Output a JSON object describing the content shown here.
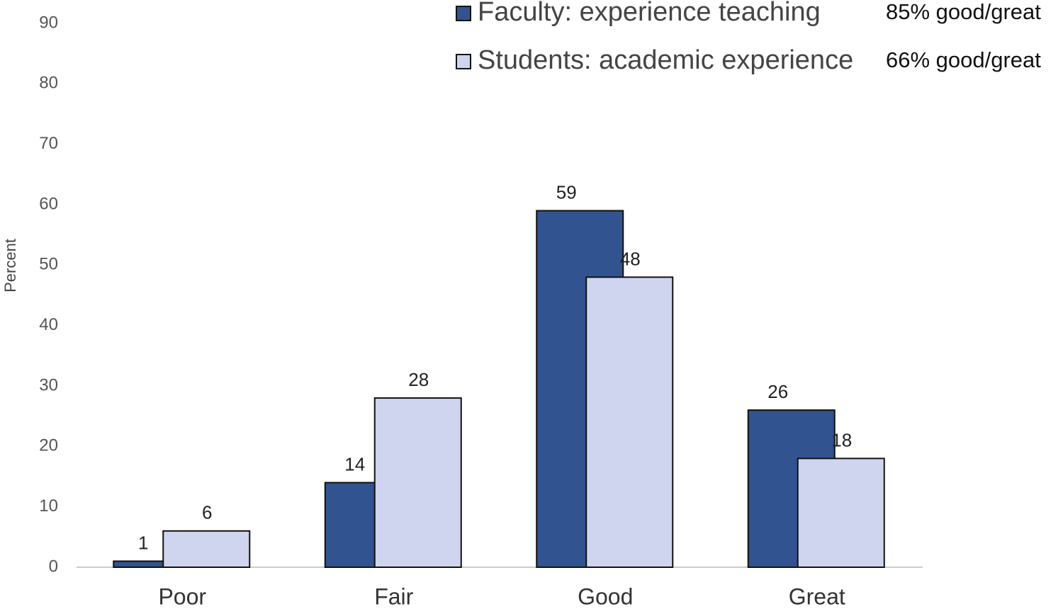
{
  "chart_data": {
    "type": "bar",
    "y_label": "Percent",
    "categories": [
      "Poor",
      "Fair",
      "Good",
      "Great"
    ],
    "series": [
      {
        "name": "Faculty: experience teaching",
        "color": "#31538f",
        "values": [
          1,
          14,
          59,
          26
        ]
      },
      {
        "name": "Students: academic experience",
        "color": "#cfd5ee",
        "values": [
          6,
          28,
          48,
          18
        ]
      }
    ],
    "annotations": [
      "85% good/great",
      "66% good/great"
    ],
    "ylim": [
      0,
      90
    ],
    "yticks": [
      0,
      10,
      20,
      30,
      40,
      50,
      60,
      70,
      80,
      90
    ],
    "grid": false,
    "legend": "top-right"
  }
}
